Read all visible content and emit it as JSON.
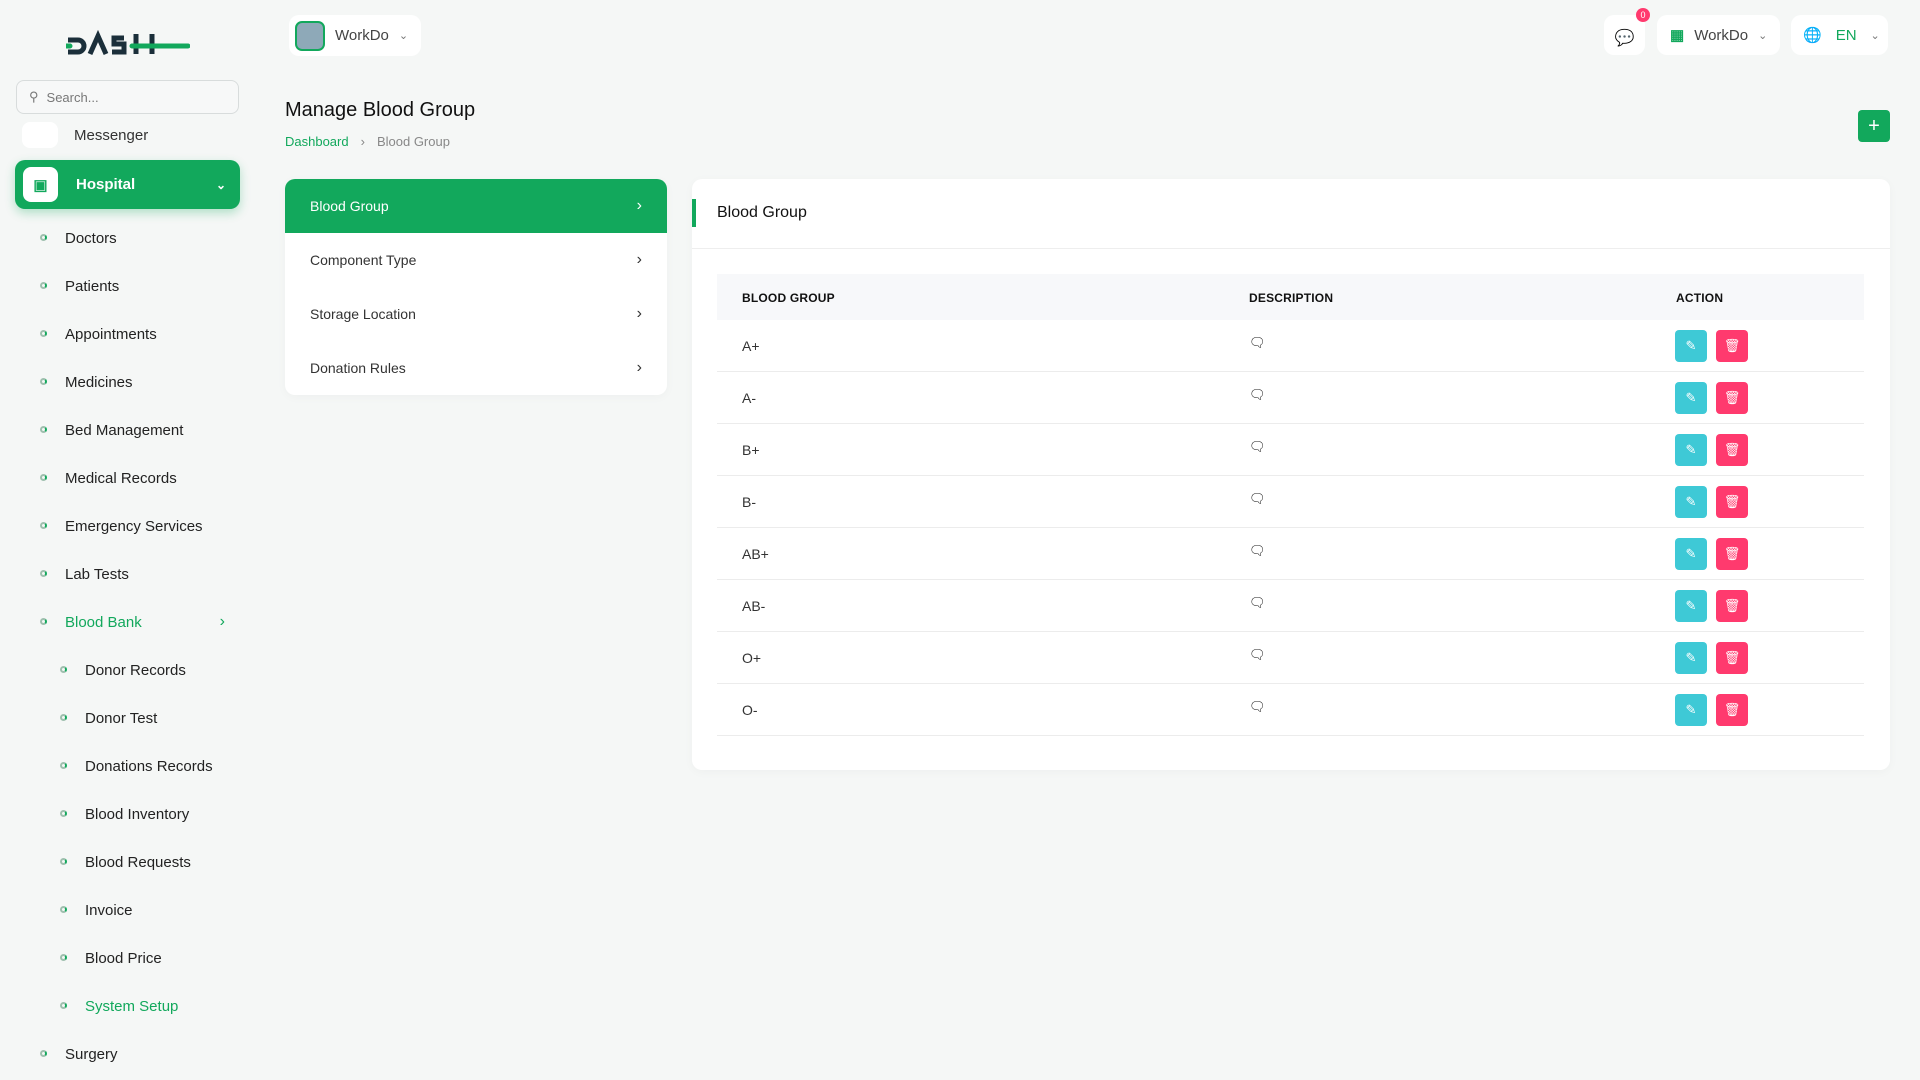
{
  "brand": {
    "logo_text": "DASH",
    "accent": "#12a85c"
  },
  "sidebar": {
    "search_placeholder": "Search...",
    "partial_item": "Messenger",
    "module": "Hospital",
    "items": [
      {
        "label": "Doctors"
      },
      {
        "label": "Patients"
      },
      {
        "label": "Appointments"
      },
      {
        "label": "Medicines"
      },
      {
        "label": "Bed Management"
      },
      {
        "label": "Medical Records"
      },
      {
        "label": "Emergency Services"
      },
      {
        "label": "Lab Tests"
      },
      {
        "label": "Blood Bank",
        "active": true
      }
    ],
    "sub_items": [
      {
        "label": "Donor Records"
      },
      {
        "label": "Donor Test"
      },
      {
        "label": "Donations Records"
      },
      {
        "label": "Blood Inventory"
      },
      {
        "label": "Blood Requests"
      },
      {
        "label": "Invoice"
      },
      {
        "label": "Blood Price"
      },
      {
        "label": "System Setup",
        "active": true
      }
    ],
    "after_items": [
      {
        "label": "Surgery"
      }
    ]
  },
  "header": {
    "workspace": "WorkDo",
    "notification_count": "0",
    "company": "WorkDo",
    "language": "EN"
  },
  "page": {
    "title": "Manage Blood Group",
    "breadcrumb": [
      "Dashboard",
      "Blood Group"
    ]
  },
  "setup_menu": [
    {
      "label": "Blood Group",
      "active": true
    },
    {
      "label": "Component Type"
    },
    {
      "label": "Storage Location"
    },
    {
      "label": "Donation Rules"
    }
  ],
  "panel": {
    "title": "Blood Group",
    "columns": [
      "BLOOD GROUP",
      "DESCRIPTION",
      "ACTION"
    ],
    "rows": [
      {
        "group": "A+"
      },
      {
        "group": "A-"
      },
      {
        "group": "B+"
      },
      {
        "group": "B-"
      },
      {
        "group": "AB+"
      },
      {
        "group": "AB-"
      },
      {
        "group": "O+"
      },
      {
        "group": "O-"
      }
    ],
    "edit_color": "#3ec9d6",
    "delete_color": "#ff3a6e"
  }
}
